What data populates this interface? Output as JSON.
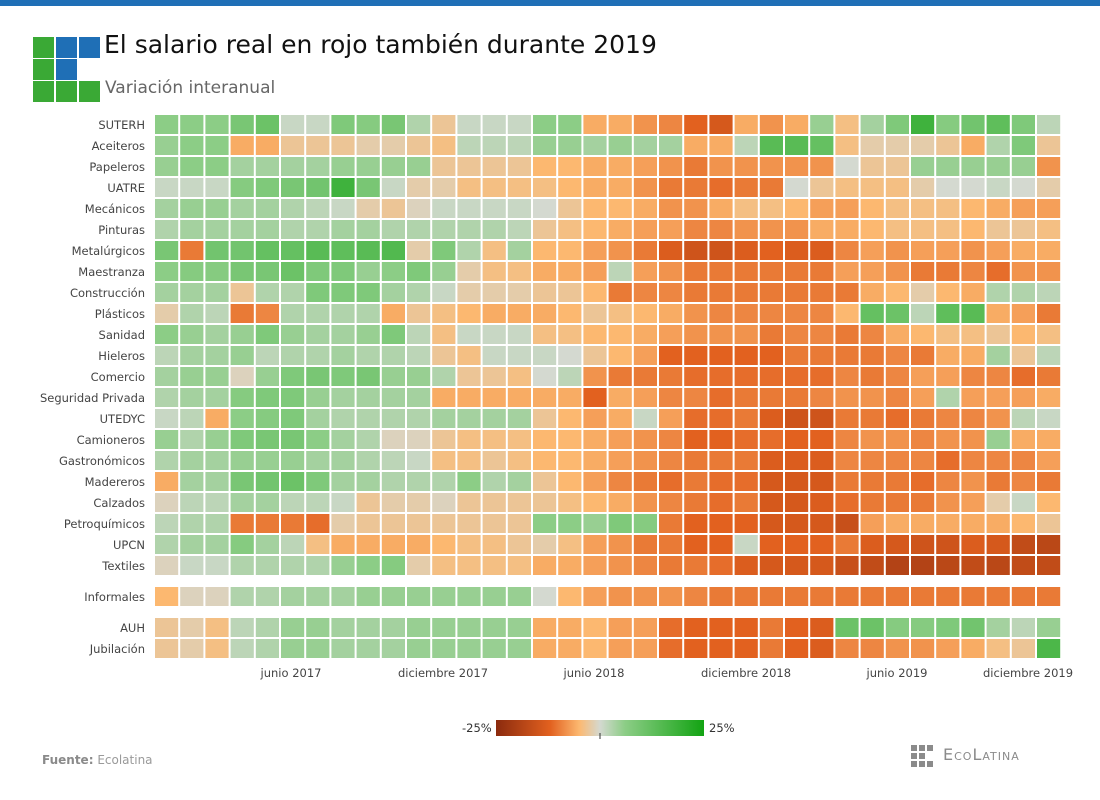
{
  "header": {
    "title": "El salario real en rojo también durante 2019",
    "subtitle": "Variación interanual"
  },
  "colors": {
    "brand_green": "#3aa935",
    "brand_blue": "#1f6fb6",
    "scale": [
      "#8b2a0e",
      "#e2611f",
      "#fcb870",
      "#d4d9d0",
      "#8ccd86",
      "#12a312"
    ]
  },
  "chart_data": {
    "type": "heatmap",
    "title": "El salario real en rojo también durante 2019",
    "subtitle": "Variación interanual",
    "x_start": "2017-01",
    "x_end": "2019-12",
    "x_ticks": [
      "junio 2017",
      "diciembre 2017",
      "junio 2018",
      "diciembre 2018",
      "junio 2019",
      "diciembre 2019"
    ],
    "color_range": [
      -25,
      25
    ],
    "legend_labels": [
      "-25%",
      "25%"
    ],
    "legend_position": "bottom-center",
    "value_unit": "% variación interanual (estimado)",
    "groups": [
      {
        "rows": [
          {
            "name": "SUTERH",
            "values": [
              6,
              6,
              6,
              9,
              11,
              1,
              1,
              8,
              7,
              9,
              3,
              -3,
              1,
              1,
              1,
              6,
              6,
              -6,
              -6,
              -8,
              -9,
              -12,
              -14,
              -6,
              -8,
              -6,
              5,
              -4,
              4,
              8,
              18,
              7,
              10,
              13,
              8,
              2
            ]
          },
          {
            "name": "Aceiteros",
            "values": [
              5,
              6,
              6,
              -6,
              -6,
              -3,
              -3,
              -3,
              -2,
              -2,
              -3,
              -4,
              2,
              2,
              2,
              5,
              5,
              4,
              5,
              4,
              4,
              -6,
              -6,
              2,
              14,
              14,
              12,
              -4,
              -2,
              -2,
              -2,
              -3,
              -6,
              3,
              8,
              -3
            ]
          },
          {
            "name": "Papeleros",
            "values": [
              5,
              6,
              6,
              4,
              4,
              4,
              4,
              5,
              5,
              5,
              5,
              -3,
              -3,
              -3,
              -3,
              -5,
              -5,
              -6,
              -6,
              -7,
              -8,
              -10,
              -8,
              -8,
              -8,
              -8,
              -8,
              0,
              -3,
              -3,
              5,
              5,
              5,
              5,
              5,
              -8
            ]
          },
          {
            "name": "UATRE",
            "values": [
              1,
              1,
              1,
              7,
              8,
              9,
              10,
              18,
              9,
              1,
              -2,
              -2,
              -4,
              -4,
              -4,
              -4,
              -5,
              -6,
              -6,
              -8,
              -10,
              -10,
              -11,
              -10,
              -10,
              0,
              -3,
              -4,
              -4,
              -4,
              -2,
              0,
              0,
              1,
              0,
              -2
            ]
          },
          {
            "name": "Mecánicos",
            "values": [
              4,
              5,
              5,
              4,
              4,
              3,
              2,
              1,
              -2,
              -3,
              -1,
              1,
              1,
              1,
              1,
              0,
              -3,
              -5,
              -5,
              -6,
              -8,
              -8,
              -6,
              -4,
              -4,
              -5,
              -7,
              -7,
              -5,
              -4,
              -4,
              -4,
              -5,
              -6,
              -7,
              -7
            ]
          },
          {
            "name": "Pinturas",
            "values": [
              3,
              4,
              4,
              4,
              4,
              3,
              3,
              4,
              4,
              3,
              3,
              3,
              3,
              3,
              2,
              -3,
              -4,
              -5,
              -6,
              -7,
              -7,
              -9,
              -9,
              -8,
              -8,
              -8,
              -6,
              -6,
              -5,
              -4,
              -4,
              -4,
              -5,
              -3,
              -3,
              -4
            ]
          },
          {
            "name": "Metalúrgicos",
            "values": [
              9,
              -10,
              10,
              10,
              12,
              12,
              14,
              13,
              14,
              15,
              -2,
              8,
              3,
              -4,
              4,
              -5,
              -5,
              -7,
              -8,
              -10,
              -13,
              -15,
              -15,
              -13,
              -12,
              -13,
              -13,
              -9,
              -7,
              -8,
              -7,
              -7,
              -8,
              -7,
              -6,
              -6
            ]
          },
          {
            "name": "Maestranza",
            "values": [
              6,
              7,
              7,
              9,
              9,
              11,
              8,
              8,
              5,
              6,
              8,
              5,
              -2,
              -4,
              -4,
              -6,
              -6,
              -7,
              2,
              -7,
              -8,
              -10,
              -10,
              -10,
              -10,
              -10,
              -10,
              -7,
              -7,
              -8,
              -10,
              -10,
              -9,
              -11,
              -8,
              -8
            ]
          },
          {
            "name": "Construcción",
            "values": [
              4,
              4,
              4,
              -3,
              3,
              3,
              8,
              8,
              8,
              4,
              3,
              1,
              -2,
              -2,
              -2,
              -3,
              -3,
              -5,
              -10,
              -9,
              -9,
              -10,
              -10,
              -10,
              -10,
              -10,
              -10,
              -10,
              -6,
              -5,
              -2,
              -5,
              -6,
              3,
              3,
              2
            ]
          },
          {
            "name": "Plásticos",
            "values": [
              -2,
              3,
              2,
              -10,
              -9,
              3,
              3,
              3,
              3,
              -6,
              -3,
              -4,
              -5,
              -6,
              -6,
              -6,
              -5,
              -3,
              -4,
              -5,
              -6,
              -8,
              -9,
              -9,
              -9,
              -9,
              -9,
              -5,
              12,
              11,
              2,
              13,
              14,
              -6,
              -7,
              -10
            ]
          },
          {
            "name": "Sanidad",
            "values": [
              6,
              5,
              4,
              5,
              8,
              5,
              4,
              4,
              5,
              8,
              2,
              -4,
              1,
              1,
              1,
              -4,
              -4,
              -5,
              -5,
              -6,
              -7,
              -8,
              -8,
              -8,
              -10,
              -9,
              -9,
              -10,
              -9,
              -6,
              -5,
              -4,
              -4,
              -3,
              -5,
              -4
            ]
          },
          {
            "name": "Hieleros",
            "values": [
              2,
              4,
              4,
              5,
              2,
              3,
              3,
              4,
              3,
              3,
              2,
              -3,
              -4,
              1,
              1,
              1,
              0,
              -3,
              -5,
              -7,
              -12,
              -12,
              -12,
              -12,
              -12,
              -10,
              -10,
              -10,
              -10,
              -9,
              -10,
              -6,
              -6,
              4,
              -3,
              2
            ]
          },
          {
            "name": "Comercio",
            "values": [
              4,
              5,
              5,
              -1,
              5,
              8,
              9,
              8,
              9,
              5,
              5,
              3,
              -3,
              -3,
              -4,
              0,
              2,
              -8,
              -10,
              -10,
              -10,
              -11,
              -11,
              -11,
              -11,
              -11,
              -11,
              -9,
              -10,
              -9,
              -7,
              -7,
              -9,
              -9,
              -11,
              -10
            ]
          },
          {
            "name": "Seguridad Privada",
            "values": [
              3,
              4,
              4,
              7,
              8,
              8,
              5,
              4,
              4,
              4,
              4,
              -6,
              -6,
              -6,
              -6,
              -6,
              -6,
              -12,
              -6,
              -7,
              -9,
              -9,
              -11,
              -10,
              -10,
              -10,
              -9,
              -8,
              -8,
              -9,
              -7,
              3,
              -7,
              -7,
              -7,
              -6
            ]
          },
          {
            "name": "UTEDYC",
            "values": [
              1,
              2,
              -6,
              6,
              7,
              8,
              4,
              3,
              3,
              3,
              3,
              4,
              4,
              4,
              4,
              -3,
              -5,
              -7,
              -6,
              1,
              -7,
              -11,
              -11,
              -10,
              -13,
              -15,
              -15,
              -10,
              -10,
              -11,
              -10,
              -9,
              -9,
              -8,
              2,
              1
            ]
          },
          {
            "name": "Camioneros",
            "values": [
              5,
              3,
              5,
              8,
              9,
              9,
              6,
              4,
              3,
              -1,
              -1,
              -3,
              -4,
              -4,
              -4,
              -5,
              -5,
              -6,
              -7,
              -8,
              -9,
              -12,
              -12,
              -11,
              -11,
              -12,
              -12,
              -9,
              -8,
              -8,
              -9,
              -8,
              -8,
              5,
              -6,
              -6
            ]
          },
          {
            "name": "Gastronómicos",
            "values": [
              3,
              4,
              4,
              5,
              5,
              5,
              4,
              4,
              3,
              2,
              1,
              -4,
              -4,
              -3,
              -4,
              -5,
              -5,
              -6,
              -7,
              -8,
              -9,
              -10,
              -10,
              -10,
              -13,
              -13,
              -13,
              -9,
              -9,
              -9,
              -9,
              -11,
              -9,
              -9,
              -9,
              -7
            ]
          },
          {
            "name": "Madereros",
            "values": [
              -6,
              4,
              4,
              9,
              10,
              11,
              8,
              4,
              4,
              3,
              3,
              3,
              6,
              3,
              4,
              -3,
              -5,
              -7,
              -9,
              -10,
              -11,
              -10,
              -11,
              -11,
              -14,
              -14,
              -14,
              -10,
              -10,
              -10,
              -11,
              -9,
              -8,
              -10,
              -9,
              -10
            ]
          },
          {
            "name": "Calzados",
            "values": [
              -1,
              2,
              2,
              4,
              4,
              2,
              2,
              1,
              -3,
              -2,
              -2,
              -1,
              -3,
              -3,
              -3,
              -3,
              -4,
              -5,
              -6,
              -8,
              -9,
              -10,
              -11,
              -10,
              -14,
              -14,
              -13,
              -11,
              -10,
              -10,
              -10,
              -8,
              -7,
              -2,
              1,
              -5
            ]
          },
          {
            "name": "Petroquímicos",
            "values": [
              2,
              3,
              3,
              -10,
              -10,
              -10,
              -11,
              -2,
              -3,
              -3,
              -3,
              -3,
              -3,
              -3,
              -3,
              6,
              6,
              5,
              8,
              7,
              -10,
              -12,
              -12,
              -12,
              -14,
              -14,
              -14,
              -16,
              -7,
              -6,
              -6,
              -6,
              -6,
              -6,
              -5,
              -3
            ]
          },
          {
            "name": "UPCN",
            "values": [
              3,
              4,
              4,
              7,
              4,
              2,
              -4,
              -6,
              -6,
              -6,
              -6,
              -5,
              -4,
              -4,
              -3,
              -2,
              -4,
              -7,
              -8,
              -10,
              -10,
              -12,
              -12,
              1,
              -12,
              -12,
              -12,
              -10,
              -13,
              -14,
              -15,
              -15,
              -13,
              -14,
              -17,
              -18
            ]
          },
          {
            "name": "Textiles",
            "values": [
              -1,
              1,
              1,
              3,
              3,
              3,
              3,
              5,
              6,
              7,
              -2,
              -4,
              -4,
              -4,
              -4,
              -6,
              -6,
              -7,
              -8,
              -9,
              -10,
              -10,
              -11,
              -13,
              -14,
              -14,
              -14,
              -16,
              -17,
              -19,
              -19,
              -18,
              -17,
              -18,
              -17,
              -17
            ]
          }
        ]
      },
      {
        "rows": [
          {
            "name": "Informales",
            "values": [
              -5,
              -1,
              -1,
              3,
              3,
              4,
              4,
              4,
              5,
              5,
              5,
              5,
              5,
              5,
              5,
              0,
              -5,
              -7,
              -8,
              -8,
              -8,
              -9,
              -10,
              -10,
              -10,
              -10,
              -10,
              -10,
              -10,
              -10,
              -10,
              -10,
              -10,
              -10,
              -10,
              -10
            ]
          }
        ]
      },
      {
        "rows": [
          {
            "name": "AUH",
            "values": [
              -3,
              -2,
              -4,
              2,
              3,
              5,
              5,
              4,
              4,
              4,
              5,
              5,
              5,
              5,
              5,
              -6,
              -6,
              -5,
              -7,
              -7,
              -11,
              -12,
              -12,
              -12,
              -10,
              -12,
              -13,
              11,
              11,
              7,
              7,
              8,
              10,
              4,
              2,
              5
            ]
          },
          {
            "name": "Jubilación",
            "values": [
              -3,
              -2,
              -4,
              2,
              3,
              5,
              5,
              4,
              4,
              4,
              5,
              5,
              5,
              5,
              5,
              -6,
              -6,
              -5,
              -7,
              -7,
              -11,
              -12,
              -12,
              -12,
              -10,
              -12,
              -13,
              -9,
              -9,
              -8,
              -8,
              -7,
              -6,
              -4,
              -3,
              16
            ]
          }
        ]
      }
    ]
  },
  "footer": {
    "source_label": "Fuente:",
    "source_value": "Ecolatina",
    "brand": "EcoLatina"
  }
}
